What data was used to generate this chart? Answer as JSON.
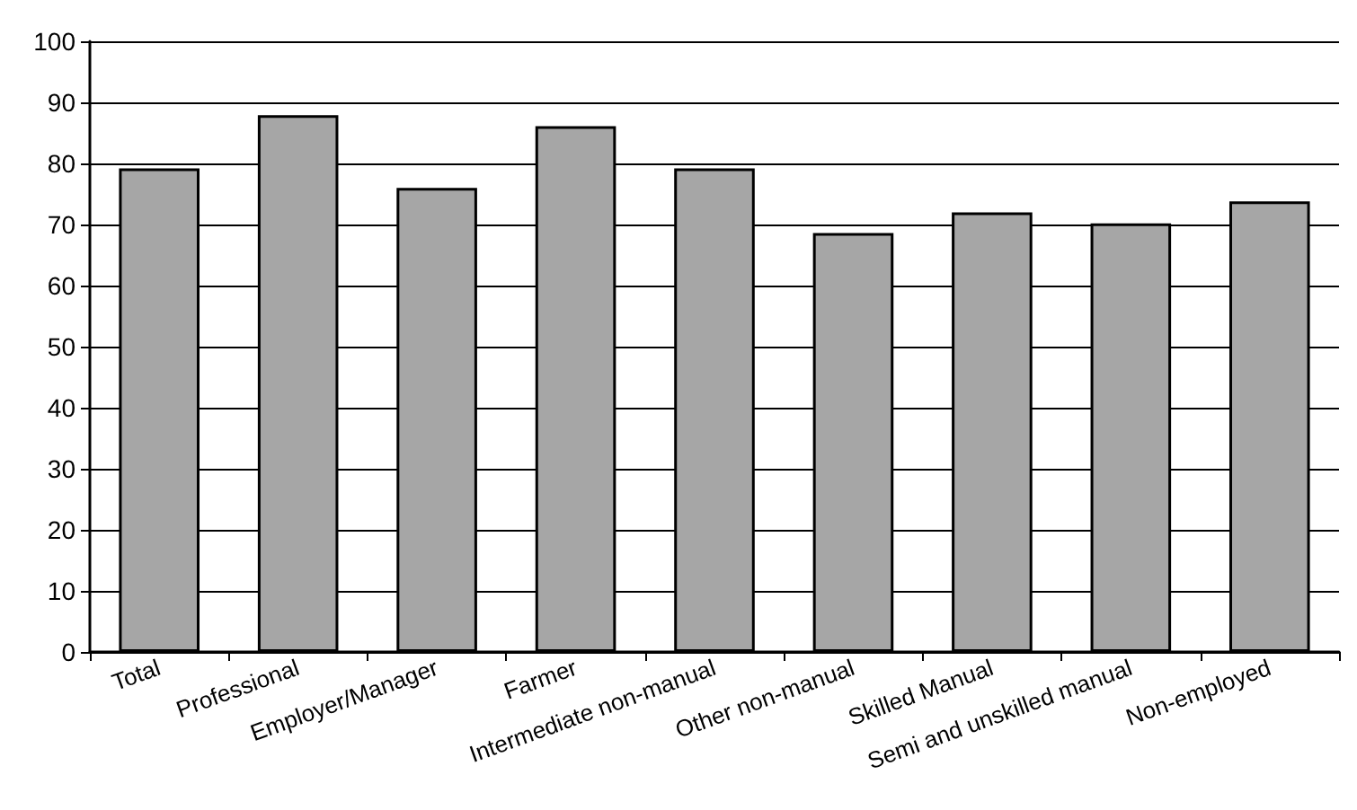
{
  "chart_data": {
    "type": "bar",
    "categories": [
      "Total",
      "Professional",
      "Employer/Manager",
      "Farmer",
      "Intermediate non-manual",
      "Other non-manual",
      "Skilled Manual",
      "Semi and unskilled manual",
      "Non-employed"
    ],
    "values": [
      79.2,
      87.9,
      76.0,
      86.1,
      79.2,
      68.6,
      72.0,
      70.2,
      73.8
    ],
    "color": "#a6a6a6",
    "ylim": [
      0,
      100
    ],
    "yticks": [
      0,
      10,
      20,
      30,
      40,
      50,
      60,
      70,
      80,
      90,
      100
    ],
    "grid": "y"
  }
}
